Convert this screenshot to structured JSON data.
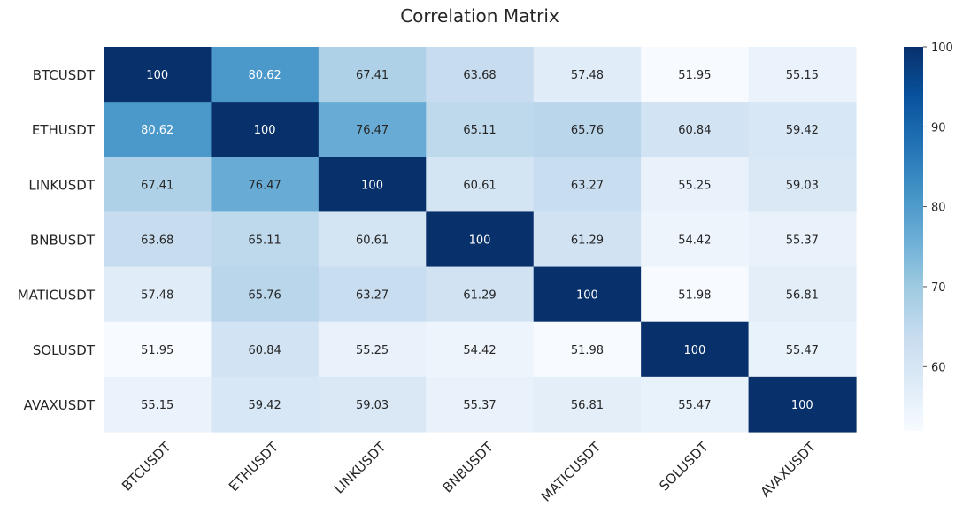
{
  "chart_data": {
    "type": "heatmap",
    "title": "Correlation Matrix",
    "xlabel": "",
    "ylabel": "",
    "rows": [
      "BTCUSDT",
      "ETHUSDT",
      "LINKUSDT",
      "BNBUSDT",
      "MATICUSDT",
      "SOLUSDT",
      "AVAXUSDT"
    ],
    "columns": [
      "BTCUSDT",
      "ETHUSDT",
      "LINKUSDT",
      "BNBUSDT",
      "MATICUSDT",
      "SOLUSDT",
      "AVAXUSDT"
    ],
    "values": [
      [
        100,
        80.62,
        67.41,
        63.68,
        57.48,
        51.95,
        55.15
      ],
      [
        80.62,
        100,
        76.47,
        65.11,
        65.76,
        60.84,
        59.42
      ],
      [
        67.41,
        76.47,
        100,
        60.61,
        63.27,
        55.25,
        59.03
      ],
      [
        63.68,
        65.11,
        60.61,
        100,
        61.29,
        54.42,
        55.37
      ],
      [
        57.48,
        65.76,
        63.27,
        61.29,
        100,
        51.98,
        56.81
      ],
      [
        51.95,
        60.84,
        55.25,
        54.42,
        51.98,
        100,
        55.47
      ],
      [
        55.15,
        59.42,
        59.03,
        55.37,
        56.81,
        55.47,
        100
      ]
    ],
    "value_labels": [
      [
        "100",
        "80.62",
        "67.41",
        "63.68",
        "57.48",
        "51.95",
        "55.15"
      ],
      [
        "80.62",
        "100",
        "76.47",
        "65.11",
        "65.76",
        "60.84",
        "59.42"
      ],
      [
        "67.41",
        "76.47",
        "100",
        "60.61",
        "63.27",
        "55.25",
        "59.03"
      ],
      [
        "63.68",
        "65.11",
        "60.61",
        "100",
        "61.29",
        "54.42",
        "55.37"
      ],
      [
        "57.48",
        "65.76",
        "63.27",
        "61.29",
        "100",
        "51.98",
        "56.81"
      ],
      [
        "51.95",
        "60.84",
        "55.25",
        "54.42",
        "51.98",
        "100",
        "55.47"
      ],
      [
        "55.15",
        "59.42",
        "59.03",
        "55.37",
        "56.81",
        "55.47",
        "100"
      ]
    ],
    "colormap": "Blues",
    "colormap_stops": [
      "#f7fbff",
      "#deebf7",
      "#c6dbef",
      "#9ecae1",
      "#6baed6",
      "#4292c6",
      "#2171b5",
      "#08519c",
      "#08306b"
    ],
    "vmin": 51.95,
    "vmax": 100,
    "colorbar": {
      "ticks": [
        60,
        70,
        80,
        90,
        100
      ],
      "tick_labels": [
        "60",
        "70",
        "80",
        "90",
        "100"
      ]
    },
    "grid": false,
    "legend": "colorbar-right"
  }
}
